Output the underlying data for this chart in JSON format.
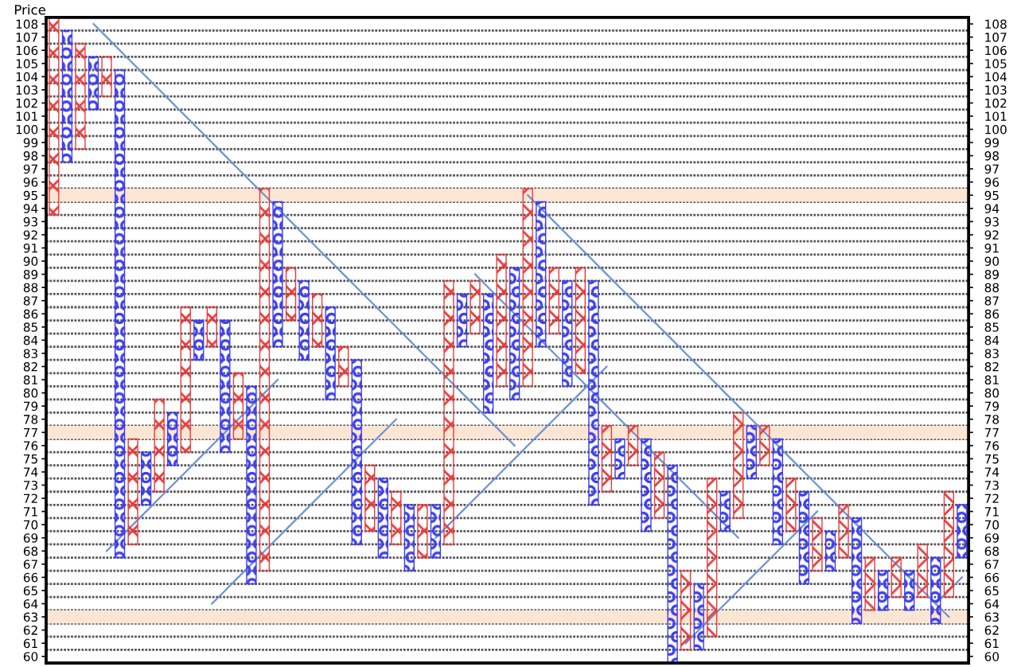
{
  "chart_data": {
    "type": "bar",
    "ylabel": "Price",
    "categories": [
      null,
      null,
      null,
      null,
      null,
      null,
      null,
      null,
      null,
      null,
      null,
      null,
      null,
      null,
      null,
      null,
      null,
      null,
      null,
      null,
      null,
      null,
      null,
      null,
      null,
      null,
      null,
      null,
      null,
      null,
      null,
      null,
      null,
      null,
      null,
      null,
      null,
      null,
      null,
      null,
      null,
      null,
      null,
      null,
      null,
      null,
      null,
      null,
      null,
      null,
      null,
      null,
      null,
      null,
      null,
      null,
      null,
      null,
      null,
      null,
      null,
      null,
      null,
      null,
      null,
      null,
      null,
      null,
      null,
      null
    ],
    "ylim": [
      59.5,
      108.5
    ],
    "y2lim": [
      59.5,
      108.5
    ],
    "grid": "y",
    "legend": false,
    "yticks": [
      60,
      61,
      62,
      63,
      64,
      65,
      66,
      67,
      68,
      69,
      70,
      71,
      72,
      73,
      74,
      75,
      76,
      77,
      78,
      79,
      80,
      81,
      82,
      83,
      84,
      85,
      86,
      87,
      88,
      89,
      90,
      91,
      92,
      93,
      94,
      95,
      96,
      97,
      98,
      99,
      100,
      101,
      102,
      103,
      104,
      105,
      106,
      107,
      108
    ],
    "y2ticks": [
      60,
      61,
      62,
      63,
      64,
      65,
      66,
      67,
      68,
      69,
      70,
      71,
      72,
      73,
      74,
      75,
      76,
      77,
      78,
      79,
      80,
      81,
      82,
      83,
      84,
      85,
      86,
      87,
      88,
      89,
      90,
      91,
      92,
      93,
      94,
      95,
      96,
      97,
      98,
      99,
      100,
      101,
      102,
      103,
      104,
      105,
      106,
      107,
      108
    ],
    "bands": [
      {
        "axis": "y",
        "from": 94.5,
        "to": 95.5,
        "color": "#fbe5d3"
      },
      {
        "axis": "y",
        "from": 76.5,
        "to": 77.5,
        "color": "#fbe5d3"
      },
      {
        "axis": "y",
        "from": 62.5,
        "to": 63.5,
        "color": "#fbe5d3"
      }
    ],
    "series": [
      {
        "marker": "cross",
        "color": "#e83a3a",
        "base": [
          93.5,
          null,
          98.5,
          null,
          102.5,
          null,
          68.5,
          null,
          72.5,
          null,
          75.5,
          null,
          83.5,
          null,
          76.5,
          null,
          66.5,
          null,
          85.5,
          null,
          83.5,
          null,
          80.5,
          null,
          69.5,
          null,
          68.5,
          null,
          67.5,
          null,
          68.5,
          null,
          84.5,
          null,
          80.5,
          null,
          80.5,
          null,
          84.5,
          null,
          81.5,
          null,
          72.5,
          null,
          74.5,
          null,
          70.5,
          null,
          60.5,
          null,
          61.5,
          null,
          70.5,
          null,
          74.5,
          null,
          69.5,
          null,
          66.5,
          null,
          67.5,
          null,
          63.5,
          null,
          64.5,
          null,
          64.5,
          null,
          64.5,
          null
        ],
        "values": [
          15,
          null,
          8,
          null,
          3,
          null,
          8,
          null,
          7,
          null,
          11,
          null,
          3,
          null,
          5,
          null,
          29,
          null,
          4,
          null,
          4,
          null,
          3,
          null,
          5,
          null,
          4,
          null,
          4,
          null,
          20,
          null,
          4,
          null,
          10,
          null,
          15,
          null,
          5,
          null,
          8,
          null,
          5,
          null,
          3,
          null,
          5,
          null,
          6,
          null,
          12,
          null,
          8,
          null,
          3,
          null,
          4,
          null,
          4,
          null,
          4,
          null,
          4,
          null,
          3,
          null,
          4,
          null,
          8,
          null
        ]
      },
      {
        "marker": "circle",
        "color": "#3c3cf0",
        "base": [
          null,
          97.5,
          null,
          101.5,
          null,
          67.5,
          null,
          71.5,
          null,
          74.5,
          null,
          82.5,
          null,
          75.5,
          null,
          65.5,
          null,
          83.5,
          null,
          82.5,
          null,
          79.5,
          null,
          68.5,
          null,
          67.5,
          null,
          66.5,
          null,
          67.5,
          null,
          83.5,
          null,
          78.5,
          null,
          79.5,
          null,
          83.5,
          null,
          80.5,
          null,
          71.5,
          null,
          73.5,
          null,
          69.5,
          null,
          59.5,
          null,
          60.5,
          null,
          69.5,
          null,
          73.5,
          null,
          68.5,
          null,
          65.5,
          null,
          66.5,
          null,
          62.5,
          null,
          63.5,
          null,
          63.5,
          null,
          62.5,
          null,
          67.5
        ],
        "values": [
          null,
          10,
          null,
          4,
          null,
          37,
          null,
          4,
          null,
          4,
          null,
          3,
          null,
          10,
          null,
          15,
          null,
          11,
          null,
          6,
          null,
          7,
          null,
          14,
          null,
          6,
          null,
          5,
          null,
          4,
          null,
          4,
          null,
          9,
          null,
          10,
          null,
          11,
          null,
          8,
          null,
          17,
          null,
          3,
          null,
          7,
          null,
          15,
          null,
          5,
          null,
          3,
          null,
          4,
          null,
          8,
          null,
          7,
          null,
          3,
          null,
          8,
          null,
          3,
          null,
          3,
          null,
          5,
          null,
          4
        ]
      },
      {
        "type": "line",
        "marker": "none",
        "line_style": "solid",
        "color": "#6b93d6",
        "values": [
          null,
          null,
          null,
          108,
          107,
          106,
          105,
          104,
          103,
          102,
          101,
          100,
          99,
          98,
          97,
          96,
          95,
          94,
          93,
          92,
          91,
          90,
          89,
          88,
          87,
          86,
          85,
          84,
          83,
          82,
          81,
          80,
          79,
          78,
          77,
          76,
          null,
          null,
          null,
          null,
          null,
          null,
          null,
          null,
          null,
          null,
          null,
          null,
          null,
          null,
          null,
          null,
          null,
          null,
          null,
          null,
          null,
          null,
          null,
          null,
          null,
          null,
          null,
          null,
          null,
          null,
          null,
          null,
          null,
          null
        ]
      },
      {
        "type": "line",
        "marker": "none",
        "line_style": "solid",
        "color": "#6b93d6",
        "values": [
          null,
          null,
          null,
          null,
          null,
          null,
          null,
          null,
          null,
          null,
          null,
          null,
          null,
          null,
          null,
          null,
          null,
          null,
          null,
          null,
          null,
          null,
          null,
          null,
          null,
          null,
          null,
          null,
          null,
          null,
          null,
          null,
          89,
          88,
          87,
          86,
          85,
          84,
          83,
          82,
          81,
          80,
          79,
          78,
          77,
          76,
          75,
          74,
          73,
          72,
          71,
          70,
          69,
          null,
          null,
          null,
          null,
          null,
          null,
          null,
          null,
          null,
          null,
          null,
          null,
          null,
          null,
          null,
          null,
          null
        ]
      },
      {
        "type": "line",
        "marker": "none",
        "line_style": "solid",
        "color": "#6b93d6",
        "values": [
          null,
          null,
          null,
          null,
          null,
          null,
          null,
          null,
          null,
          null,
          null,
          null,
          null,
          null,
          null,
          null,
          null,
          null,
          null,
          null,
          null,
          null,
          null,
          null,
          null,
          null,
          null,
          null,
          null,
          null,
          null,
          null,
          null,
          null,
          null,
          null,
          95,
          94,
          93,
          92,
          91,
          90,
          89,
          88,
          87,
          86,
          85,
          84,
          83,
          82,
          81,
          80,
          79,
          78,
          77,
          76,
          75,
          74,
          73,
          72,
          71,
          70,
          69,
          68,
          67,
          66,
          65,
          64,
          63,
          null
        ]
      },
      {
        "type": "line",
        "marker": "none",
        "line_style": "solid",
        "color": "#6b93d6",
        "values": [
          null,
          null,
          null,
          null,
          68,
          69,
          70,
          71,
          72,
          73,
          74,
          75,
          76,
          77,
          78,
          79,
          80,
          81,
          null,
          null,
          null,
          null,
          null,
          null,
          null,
          null,
          null,
          null,
          null,
          null,
          null,
          null,
          null,
          null,
          null,
          null,
          null,
          null,
          null,
          null,
          null,
          null,
          null,
          null,
          null,
          null,
          null,
          null,
          null,
          null,
          null,
          null,
          null,
          null,
          null,
          null,
          null,
          null,
          null,
          null,
          null,
          null,
          null,
          null,
          null,
          null,
          null,
          null,
          null,
          null
        ]
      },
      {
        "type": "line",
        "marker": "none",
        "line_style": "solid",
        "color": "#6b93d6",
        "values": [
          null,
          null,
          null,
          null,
          null,
          null,
          null,
          null,
          null,
          null,
          null,
          null,
          64,
          65,
          66,
          67,
          68,
          69,
          70,
          71,
          72,
          73,
          74,
          75,
          76,
          77,
          78,
          null,
          null,
          null,
          null,
          null,
          null,
          null,
          null,
          null,
          null,
          null,
          null,
          null,
          null,
          null,
          null,
          null,
          null,
          null,
          null,
          null,
          null,
          null,
          null,
          null,
          null,
          null,
          null,
          null,
          null,
          null,
          null,
          null,
          null,
          null,
          null,
          null,
          null,
          null,
          null,
          null,
          null,
          null
        ]
      },
      {
        "type": "line",
        "marker": "none",
        "line_style": "solid",
        "color": "#6b93d6",
        "values": [
          null,
          null,
          null,
          null,
          null,
          null,
          null,
          null,
          null,
          null,
          null,
          null,
          null,
          null,
          null,
          null,
          null,
          null,
          null,
          null,
          null,
          null,
          null,
          null,
          null,
          null,
          null,
          null,
          null,
          69,
          70,
          71,
          72,
          73,
          74,
          75,
          76,
          77,
          78,
          79,
          80,
          81,
          82,
          null,
          null,
          null,
          null,
          null,
          null,
          null,
          null,
          null,
          null,
          null,
          null,
          null,
          null,
          null,
          null,
          null,
          null,
          null,
          null,
          null,
          null,
          null,
          null,
          null,
          null,
          null
        ]
      },
      {
        "type": "line",
        "marker": "none",
        "line_style": "solid",
        "color": "#6b93d6",
        "values": [
          null,
          null,
          null,
          null,
          null,
          null,
          null,
          null,
          null,
          null,
          null,
          null,
          null,
          null,
          null,
          null,
          null,
          null,
          null,
          null,
          null,
          null,
          null,
          null,
          null,
          null,
          null,
          null,
          null,
          null,
          null,
          null,
          null,
          null,
          null,
          null,
          null,
          null,
          null,
          null,
          null,
          null,
          null,
          null,
          null,
          null,
          null,
          null,
          61,
          62,
          63,
          64,
          65,
          66,
          67,
          68,
          69,
          70,
          71,
          null,
          null,
          null,
          null,
          null,
          null,
          null,
          null,
          null,
          null,
          null
        ]
      },
      {
        "type": "line",
        "marker": "none",
        "line_style": "solid",
        "color": "#6b93d6",
        "values": [
          null,
          null,
          null,
          null,
          null,
          null,
          null,
          null,
          null,
          null,
          null,
          null,
          null,
          null,
          null,
          null,
          null,
          null,
          null,
          null,
          null,
          null,
          null,
          null,
          null,
          null,
          null,
          null,
          null,
          null,
          null,
          null,
          null,
          null,
          null,
          null,
          null,
          null,
          null,
          null,
          null,
          null,
          null,
          null,
          null,
          null,
          null,
          null,
          null,
          null,
          null,
          null,
          null,
          null,
          null,
          null,
          null,
          null,
          null,
          null,
          null,
          null,
          null,
          null,
          null,
          null,
          null,
          64,
          65,
          66
        ]
      }
    ]
  }
}
